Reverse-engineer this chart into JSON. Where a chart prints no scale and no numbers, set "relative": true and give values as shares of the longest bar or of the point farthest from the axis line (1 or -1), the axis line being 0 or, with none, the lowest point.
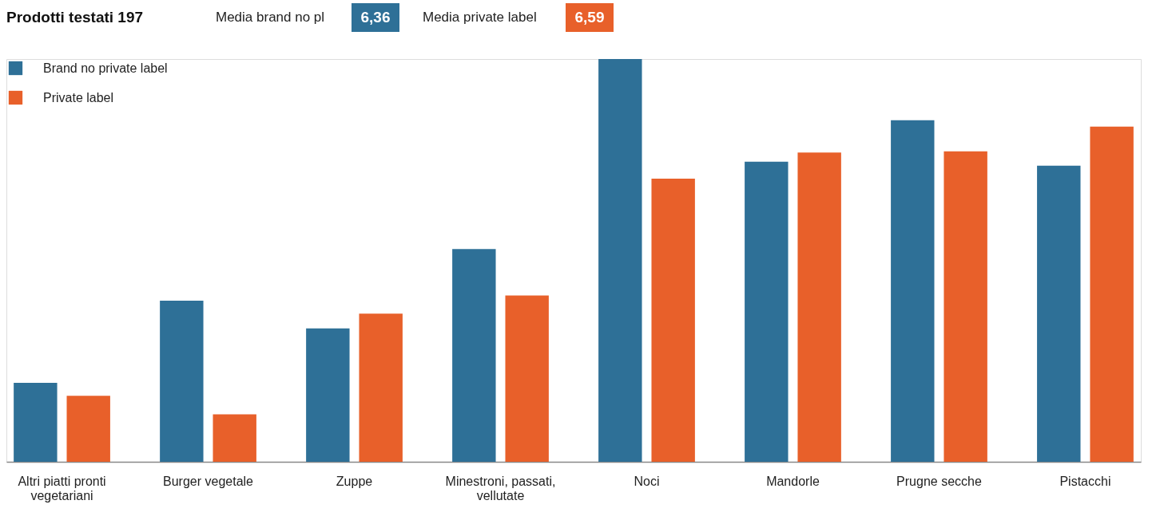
{
  "chart_data": {
    "type": "bar",
    "title": "Prodotti testati 197",
    "annotations": [
      "Media brand no pl",
      "6,36",
      "Media private label",
      "6,59"
    ],
    "relative": true,
    "legend": "top left",
    "categories": [
      "Altri piatti pronti vegetariani",
      "Burger vegetale",
      "Zuppe",
      "Minestroni, passati, vellutate",
      "Noci",
      "Mandorle",
      "Prugne secche",
      "Pistacchi"
    ],
    "series": [
      {
        "name": "Brand no private label",
        "color": "#2e7097",
        "values": [
          0.196,
          0.4,
          0.331,
          0.528,
          1,
          0.745,
          0.848,
          0.735
        ]
      },
      {
        "name": "Private label",
        "color": "#e8602a",
        "values": [
          0.164,
          0.118,
          0.368,
          0.413,
          0.703,
          0.768,
          0.771,
          0.832
        ]
      }
    ]
  }
}
